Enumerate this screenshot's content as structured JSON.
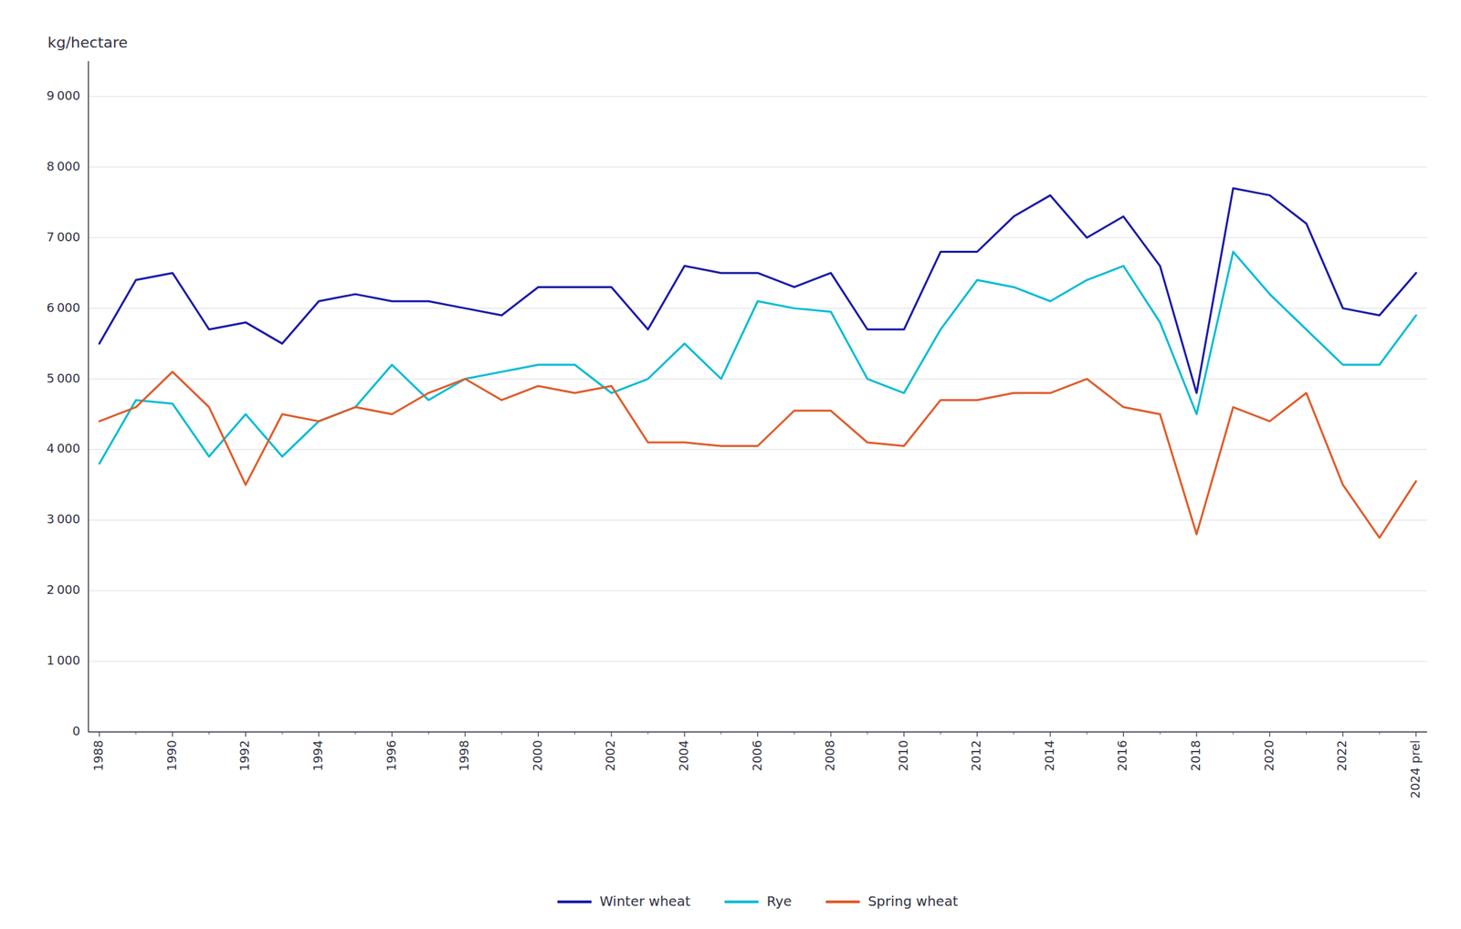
{
  "chart_data": {
    "type": "line",
    "y_label": "kg/hectare",
    "categories": [
      "1988",
      null,
      "1990",
      null,
      "1992",
      null,
      "1994",
      null,
      "1996",
      null,
      "1998",
      null,
      "2000",
      null,
      "2002",
      null,
      "2004",
      null,
      "2006",
      null,
      "2008",
      null,
      "2010",
      null,
      "2012",
      null,
      "2014",
      null,
      "2016",
      null,
      "2018",
      null,
      "2020",
      null,
      "2022",
      null,
      "2024 prel"
    ],
    "series": [
      {
        "name": "Winter wheat",
        "color": "#1a1aaa",
        "values": [
          5500,
          6400,
          6500,
          5700,
          5800,
          5500,
          6100,
          6200,
          6100,
          6100,
          6000,
          5900,
          6300,
          6300,
          6300,
          5700,
          6600,
          6500,
          6500,
          6300,
          6500,
          5700,
          5700,
          6800,
          6800,
          7300,
          7600,
          7000,
          7300,
          6600,
          4800,
          7700,
          7600,
          7200,
          6000,
          5900,
          6500
        ]
      },
      {
        "name": "Rye",
        "color": "#00bcd4",
        "values": [
          3800,
          4700,
          4650,
          3900,
          4500,
          3900,
          4400,
          4600,
          5200,
          4700,
          5000,
          5100,
          5200,
          5200,
          4800,
          5000,
          5500,
          5000,
          6100,
          6000,
          5950,
          5000,
          4800,
          5700,
          6400,
          6300,
          6100,
          6400,
          6600,
          5800,
          4500,
          6800,
          6200,
          5700,
          5200,
          5200,
          5900
        ]
      },
      {
        "name": "Spring wheat",
        "color": "#e05c2a",
        "values": [
          4400,
          4600,
          5100,
          4600,
          3500,
          4500,
          4400,
          4600,
          4500,
          4800,
          5000,
          4700,
          4900,
          4800,
          4900,
          4100,
          4100,
          4050,
          4050,
          4550,
          4550,
          4100,
          4050,
          4700,
          4700,
          4800,
          4800,
          5000,
          4600,
          4500,
          2800,
          4600,
          4400,
          4800,
          3500,
          2750,
          3550
        ]
      }
    ],
    "ylim": [
      0,
      9500
    ],
    "yticks": [
      0,
      {
        "value": 1000,
        "label": "1 000"
      },
      {
        "value": 2000,
        "label": "2 000"
      },
      {
        "value": 3000,
        "label": "3 000"
      },
      {
        "value": 4000,
        "label": "4 000"
      },
      {
        "value": 5000,
        "label": "5 000"
      },
      {
        "value": 6000,
        "label": "6 000"
      },
      {
        "value": 7000,
        "label": "7 000"
      },
      {
        "value": 8000,
        "label": "8 000"
      },
      {
        "value": 9000,
        "label": "9 000"
      }
    ],
    "grid": true,
    "legend": "bottom"
  }
}
